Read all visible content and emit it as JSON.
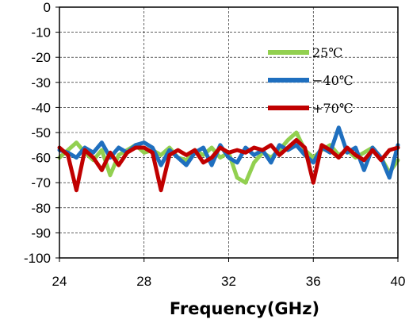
{
  "chart_data": {
    "type": "line",
    "title": "",
    "xlabel": "Frequency(GHz)",
    "ylabel": "",
    "xlim": [
      24,
      40
    ],
    "ylim": [
      -100,
      0
    ],
    "x_ticks": [
      24,
      28,
      32,
      36,
      40
    ],
    "y_ticks": [
      0,
      -10,
      -20,
      -30,
      -40,
      -50,
      -60,
      -70,
      -80,
      -90,
      -100
    ],
    "grid": true,
    "legend_position": "top-right",
    "x": [
      24.0,
      24.4,
      24.8,
      25.2,
      25.6,
      26.0,
      26.4,
      26.8,
      27.2,
      27.6,
      28.0,
      28.4,
      28.8,
      29.2,
      29.6,
      30.0,
      30.4,
      30.8,
      31.2,
      31.6,
      32.0,
      32.4,
      32.8,
      33.2,
      33.6,
      34.0,
      34.4,
      34.8,
      35.2,
      35.6,
      36.0,
      36.4,
      36.8,
      37.2,
      37.6,
      38.0,
      38.4,
      38.8,
      39.2,
      39.6,
      40.0
    ],
    "series": [
      {
        "name": "25℃",
        "color": "#92d050",
        "values": [
          -60,
          -57,
          -54,
          -58,
          -61,
          -57,
          -67,
          -59,
          -57,
          -55,
          -58,
          -57,
          -59,
          -56,
          -60,
          -61,
          -57,
          -59,
          -56,
          -60,
          -58,
          -68,
          -70,
          -62,
          -58,
          -60,
          -57,
          -53,
          -50,
          -57,
          -60,
          -57,
          -55,
          -59,
          -57,
          -60,
          -58,
          -56,
          -60,
          -66,
          -61
        ]
      },
      {
        "name": "−40℃",
        "color": "#1f6fbf",
        "values": [
          -57,
          -58,
          -60,
          -56,
          -58,
          -54,
          -60,
          -56,
          -58,
          -55,
          -54,
          -56,
          -63,
          -57,
          -60,
          -63,
          -58,
          -56,
          -63,
          -55,
          -60,
          -62,
          -56,
          -59,
          -57,
          -62,
          -55,
          -57,
          -55,
          -59,
          -62,
          -56,
          -58,
          -48,
          -58,
          -56,
          -65,
          -56,
          -60,
          -68,
          -55
        ]
      },
      {
        "name": "+70℃",
        "color": "#c00000",
        "values": [
          -56,
          -59,
          -73,
          -57,
          -60,
          -65,
          -58,
          -63,
          -58,
          -56,
          -56,
          -58,
          -73,
          -59,
          -57,
          -59,
          -57,
          -62,
          -60,
          -56,
          -58,
          -57,
          -58,
          -56,
          -57,
          -55,
          -59,
          -56,
          -53,
          -56,
          -70,
          -55,
          -57,
          -60,
          -56,
          -59,
          -61,
          -57,
          -61,
          -57,
          -56
        ]
      }
    ]
  }
}
